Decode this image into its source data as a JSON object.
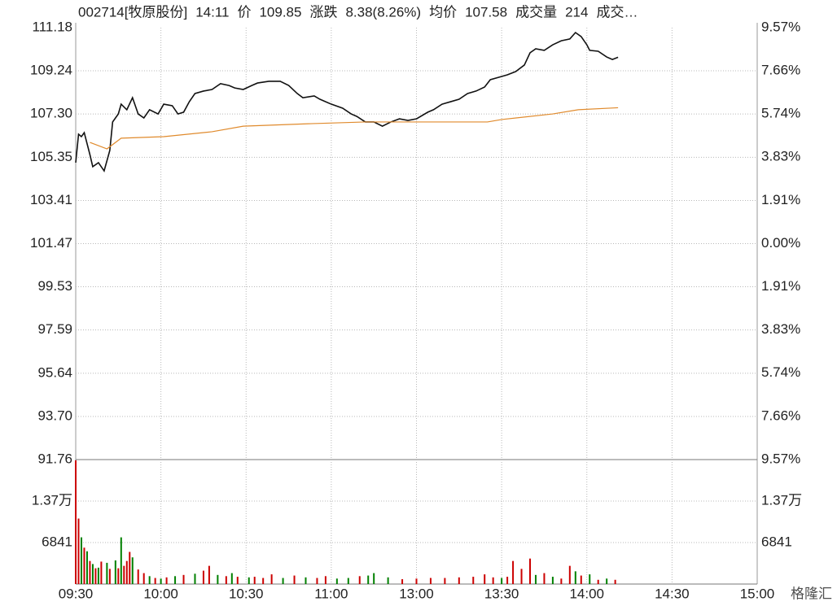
{
  "header": [
    {
      "text": "002714[牧原股份]",
      "color": "#222222"
    },
    {
      "text": "14:11",
      "color": "#008000"
    },
    {
      "text": "价",
      "color": "#222222"
    },
    {
      "text": "109.85",
      "color": "#cc0000"
    },
    {
      "text": "涨跌",
      "color": "#222222"
    },
    {
      "text": "8.38(8.26%)",
      "color": "#cc0000"
    },
    {
      "text": "均价",
      "color": "#222222"
    },
    {
      "text": "107.58",
      "color": "#cc0000"
    },
    {
      "text": "成交量",
      "color": "#222222"
    },
    {
      "text": "214",
      "color": "#222222"
    },
    {
      "text": "成交…",
      "color": "#222222"
    }
  ],
  "watermark": "格隆汇",
  "chart_data": [
    {
      "type": "line",
      "up_color": "#cc0000",
      "down_color": "#008000",
      "flat_color": "#222222",
      "grid": true,
      "xlim": [
        0,
        240
      ],
      "ylim": [
        91.76,
        111.18
      ],
      "yticks": [
        {
          "value": 111.18,
          "label": "111.18"
        },
        {
          "value": 109.24,
          "label": "109.24"
        },
        {
          "value": 107.3,
          "label": "107.30"
        },
        {
          "value": 105.35,
          "label": "105.35"
        },
        {
          "value": 103.41,
          "label": "103.41"
        },
        {
          "value": 101.47,
          "label": "101.47"
        },
        {
          "value": 99.53,
          "label": "99.53"
        },
        {
          "value": 97.59,
          "label": "97.59"
        },
        {
          "value": 95.64,
          "label": "95.64"
        },
        {
          "value": 93.7,
          "label": "93.70"
        },
        {
          "value": 91.76,
          "label": "91.76"
        }
      ],
      "y2lim": [
        -9.57,
        9.57
      ],
      "y2ticks": [
        {
          "value": 9.57,
          "label": "9.57%"
        },
        {
          "value": 7.66,
          "label": "7.66%"
        },
        {
          "value": 5.74,
          "label": "5.74%"
        },
        {
          "value": 3.83,
          "label": "3.83%"
        },
        {
          "value": 1.91,
          "label": "1.91%"
        },
        {
          "value": 0,
          "label": "0.00%"
        },
        {
          "value": -1.91,
          "label": "1.91%"
        },
        {
          "value": -3.83,
          "label": "3.83%"
        },
        {
          "value": -5.74,
          "label": "5.74%"
        },
        {
          "value": -7.66,
          "label": "7.66%"
        },
        {
          "value": -9.57,
          "label": "9.57%"
        }
      ],
      "series": [
        {
          "color": "#111111",
          "x": [
            0,
            1,
            2,
            3,
            5,
            6,
            8,
            10,
            12,
            13,
            15,
            16,
            18,
            20,
            22,
            24,
            26,
            29,
            31,
            34,
            36,
            38,
            40,
            42,
            45,
            48,
            51,
            54,
            56,
            59,
            62,
            64,
            68,
            72,
            75,
            78,
            80,
            84,
            86,
            90,
            94,
            97,
            99,
            102,
            105,
            108,
            111,
            114,
            117,
            120,
            124,
            126,
            129,
            132,
            135,
            138,
            141,
            144,
            146,
            149,
            152,
            155,
            158,
            160,
            162,
            165,
            168,
            171,
            174,
            176,
            178,
            180,
            181,
            184,
            187,
            189,
            191
          ],
          "values": [
            105.11,
            106.39,
            106.28,
            106.46,
            105.47,
            104.93,
            105.11,
            104.74,
            105.66,
            106.94,
            107.3,
            107.74,
            107.49,
            108.03,
            107.3,
            107.12,
            107.49,
            107.3,
            107.74,
            107.67,
            107.3,
            107.38,
            107.85,
            108.22,
            108.33,
            108.4,
            108.66,
            108.58,
            108.47,
            108.4,
            108.58,
            108.69,
            108.77,
            108.77,
            108.58,
            108.22,
            108.03,
            108.11,
            107.96,
            107.74,
            107.56,
            107.3,
            107.19,
            106.94,
            106.94,
            106.75,
            106.94,
            107.08,
            107.01,
            107.08,
            107.38,
            107.49,
            107.74,
            107.85,
            107.96,
            108.22,
            108.33,
            108.51,
            108.84,
            108.95,
            109.06,
            109.21,
            109.5,
            110.05,
            110.23,
            110.16,
            110.41,
            110.59,
            110.67,
            110.96,
            110.78,
            110.41,
            110.16,
            110.12,
            109.86,
            109.75,
            109.85
          ]
        },
        {
          "color": "#e08a2c",
          "x": [
            5,
            11,
            16,
            31,
            48,
            59,
            82,
            102,
            145,
            150,
            168,
            177,
            191
          ],
          "values": [
            106.02,
            105.73,
            106.21,
            106.28,
            106.5,
            106.75,
            106.86,
            106.94,
            106.94,
            107.05,
            107.3,
            107.49,
            107.58
          ]
        }
      ]
    },
    {
      "type": "bar",
      "xlim": [
        0,
        240
      ],
      "ylim": [
        0,
        20523
      ],
      "grid": true,
      "yticks": [
        {
          "value": 13682,
          "label": "1.37万"
        },
        6841
      ],
      "xticks": [
        {
          "value": 0,
          "label": "09:30"
        },
        {
          "value": 30,
          "label": "10:00"
        },
        {
          "value": 60,
          "label": "10:30"
        },
        {
          "value": 90,
          "label": "11:00"
        },
        {
          "value": 120,
          "label": "13:00"
        },
        {
          "value": 150,
          "label": "13:30"
        },
        {
          "value": 180,
          "label": "14:00"
        },
        {
          "value": 210,
          "label": "14:30"
        },
        {
          "value": 240,
          "label": "15:00"
        }
      ],
      "x": [
        0,
        1,
        2,
        3,
        4,
        5,
        6,
        7,
        8,
        9,
        11,
        12,
        14,
        15,
        16,
        17,
        18,
        19,
        20,
        22,
        24,
        26,
        28,
        30,
        32,
        35,
        38,
        42,
        45,
        47,
        50,
        53,
        55,
        57,
        61,
        63,
        66,
        69,
        73,
        77,
        81,
        85,
        88,
        92,
        96,
        100,
        103,
        105,
        110,
        115,
        120,
        125,
        130,
        135,
        140,
        144,
        147,
        150,
        152,
        154,
        157,
        160,
        162,
        165,
        168,
        171,
        174,
        176,
        178,
        181,
        184,
        187,
        190
      ],
      "values": [
        20400,
        10800,
        7700,
        6000,
        5400,
        3800,
        3300,
        2600,
        2700,
        3700,
        3500,
        2500,
        3900,
        2600,
        7700,
        3000,
        3800,
        5300,
        4400,
        2400,
        1800,
        1300,
        1000,
        900,
        1100,
        1300,
        1500,
        1700,
        2200,
        3000,
        1500,
        1300,
        1800,
        1200,
        1100,
        1200,
        1000,
        1600,
        1000,
        1400,
        1100,
        1000,
        1300,
        900,
        1000,
        1300,
        1400,
        1800,
        1100,
        800,
        900,
        1000,
        1000,
        1100,
        1200,
        1600,
        1100,
        1000,
        1200,
        3800,
        2500,
        4200,
        1500,
        1800,
        1200,
        900,
        3000,
        2100,
        1400,
        1600,
        700,
        900,
        700
      ],
      "colors": [
        "#cc0000",
        "#cc0000",
        "#008000",
        "#cc0000",
        "#008000",
        "#cc0000",
        "#008000",
        "#cc0000",
        "#008000",
        "#cc0000",
        "#008000",
        "#cc0000",
        "#008000",
        "#cc0000",
        "#008000",
        "#cc0000",
        "#cc0000",
        "#cc0000",
        "#008000",
        "#cc0000",
        "#cc0000",
        "#008000",
        "#cc0000",
        "#008000",
        "#cc0000",
        "#008000",
        "#cc0000",
        "#008000",
        "#cc0000",
        "#cc0000",
        "#008000",
        "#cc0000",
        "#008000",
        "#cc0000",
        "#008000",
        "#cc0000",
        "#cc0000",
        "#cc0000",
        "#008000",
        "#cc0000",
        "#008000",
        "#cc0000",
        "#cc0000",
        "#008000",
        "#008000",
        "#cc0000",
        "#008000",
        "#008000",
        "#008000",
        "#cc0000",
        "#cc0000",
        "#cc0000",
        "#cc0000",
        "#cc0000",
        "#cc0000",
        "#cc0000",
        "#cc0000",
        "#008000",
        "#cc0000",
        "#cc0000",
        "#cc0000",
        "#cc0000",
        "#008000",
        "#cc0000",
        "#008000",
        "#cc0000",
        "#cc0000",
        "#008000",
        "#cc0000",
        "#008000",
        "#cc0000",
        "#008000",
        "#cc0000"
      ]
    }
  ]
}
